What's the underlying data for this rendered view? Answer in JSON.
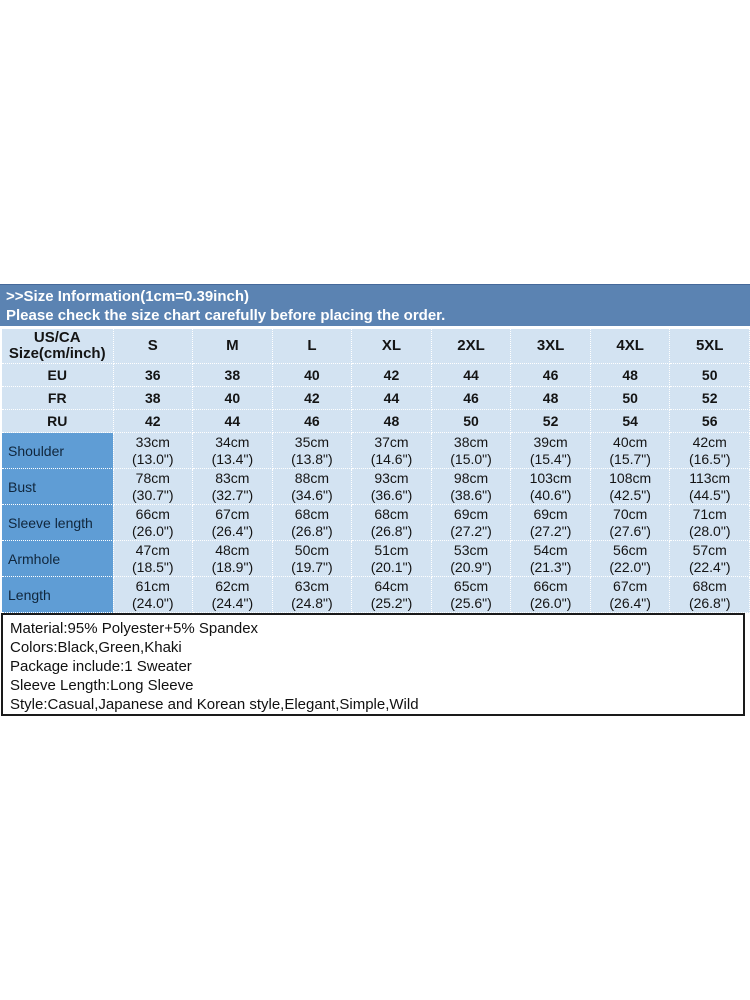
{
  "banner": {
    "line1": ">>Size Information(1cm=0.39inch)",
    "line2": "Please check the size chart carefully before placing the order."
  },
  "size_table": {
    "corner": {
      "line1": "US/CA",
      "line2": "Size(cm/inch)"
    },
    "size_columns": [
      "S",
      "M",
      "L",
      "XL",
      "2XL",
      "3XL",
      "4XL",
      "5XL"
    ],
    "region_rows": [
      {
        "label": "EU",
        "values": [
          "36",
          "38",
          "40",
          "42",
          "44",
          "46",
          "48",
          "50"
        ]
      },
      {
        "label": "FR",
        "values": [
          "38",
          "40",
          "42",
          "44",
          "46",
          "48",
          "50",
          "52"
        ]
      },
      {
        "label": "RU",
        "values": [
          "42",
          "44",
          "46",
          "48",
          "50",
          "52",
          "54",
          "56"
        ]
      }
    ],
    "measure_rows": [
      {
        "label": "Shoulder",
        "cells": [
          {
            "cm": "33cm",
            "inch": "(13.0\")"
          },
          {
            "cm": "34cm",
            "inch": "(13.4\")"
          },
          {
            "cm": "35cm",
            "inch": "(13.8\")"
          },
          {
            "cm": "37cm",
            "inch": "(14.6\")"
          },
          {
            "cm": "38cm",
            "inch": "(15.0\")"
          },
          {
            "cm": "39cm",
            "inch": "(15.4\")"
          },
          {
            "cm": "40cm",
            "inch": "(15.7\")"
          },
          {
            "cm": "42cm",
            "inch": "(16.5\")"
          }
        ]
      },
      {
        "label": "Bust",
        "cells": [
          {
            "cm": "78cm",
            "inch": "(30.7\")"
          },
          {
            "cm": "83cm",
            "inch": "(32.7\")"
          },
          {
            "cm": "88cm",
            "inch": "(34.6\")"
          },
          {
            "cm": "93cm",
            "inch": "(36.6\")"
          },
          {
            "cm": "98cm",
            "inch": "(38.6\")"
          },
          {
            "cm": "103cm",
            "inch": "(40.6\")"
          },
          {
            "cm": "108cm",
            "inch": "(42.5\")"
          },
          {
            "cm": "113cm",
            "inch": "(44.5\")"
          }
        ]
      },
      {
        "label": "Sleeve length",
        "cells": [
          {
            "cm": "66cm",
            "inch": "(26.0\")"
          },
          {
            "cm": "67cm",
            "inch": "(26.4\")"
          },
          {
            "cm": "68cm",
            "inch": "(26.8\")"
          },
          {
            "cm": "68cm",
            "inch": "(26.8\")"
          },
          {
            "cm": "69cm",
            "inch": "(27.2\")"
          },
          {
            "cm": "69cm",
            "inch": "(27.2\")"
          },
          {
            "cm": "70cm",
            "inch": "(27.6\")"
          },
          {
            "cm": "71cm",
            "inch": "(28.0\")"
          }
        ]
      },
      {
        "label": "Armhole",
        "cells": [
          {
            "cm": "47cm",
            "inch": "(18.5\")"
          },
          {
            "cm": "48cm",
            "inch": "(18.9\")"
          },
          {
            "cm": "50cm",
            "inch": "(19.7\")"
          },
          {
            "cm": "51cm",
            "inch": "(20.1\")"
          },
          {
            "cm": "53cm",
            "inch": "(20.9\")"
          },
          {
            "cm": "54cm",
            "inch": "(21.3\")"
          },
          {
            "cm": "56cm",
            "inch": "(22.0\")"
          },
          {
            "cm": "57cm",
            "inch": "(22.4\")"
          }
        ]
      },
      {
        "label": "Length",
        "cells": [
          {
            "cm": "61cm",
            "inch": "(24.0\")"
          },
          {
            "cm": "62cm",
            "inch": "(24.4\")"
          },
          {
            "cm": "63cm",
            "inch": "(24.8\")"
          },
          {
            "cm": "64cm",
            "inch": "(25.2\")"
          },
          {
            "cm": "65cm",
            "inch": "(25.6\")"
          },
          {
            "cm": "66cm",
            "inch": "(26.0\")"
          },
          {
            "cm": "67cm",
            "inch": "(26.4\")"
          },
          {
            "cm": "68cm",
            "inch": "(26.8\")"
          }
        ]
      }
    ]
  },
  "product_details": {
    "lines": [
      "Material:95% Polyester+5% Spandex",
      "Colors:Black,Green,Khaki",
      "Package include:1 Sweater",
      "Sleeve Length:Long Sleeve",
      "Style:Casual,Japanese and Korean style,Elegant,Simple,Wild"
    ]
  },
  "colors": {
    "banner_bg": "#5b83b2",
    "light_cell_bg": "#d3e3f2",
    "measure_label_bg": "#5f9dd5",
    "details_border": "#1a1a1a"
  }
}
